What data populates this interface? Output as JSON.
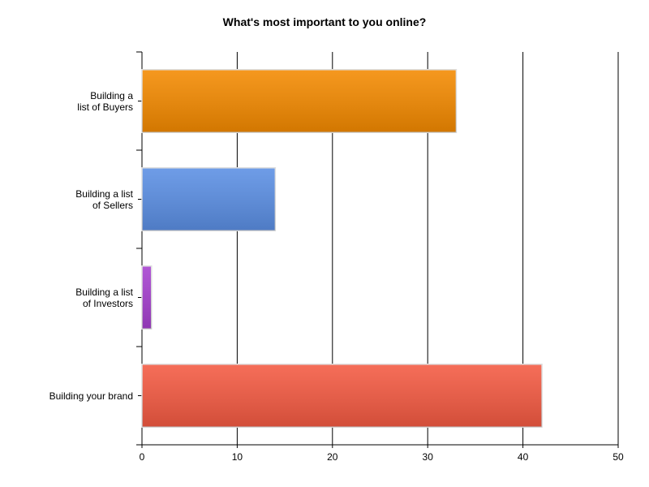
{
  "chart_data": {
    "type": "hbar",
    "title": "What's most important to you online?",
    "categories": [
      "Building a\nlist of Buyers",
      "Building a list\nof Sellers",
      "Building a list\nof Investors",
      "Building your brand"
    ],
    "values": [
      33,
      14,
      1,
      42
    ],
    "colors": [
      "#f48a00",
      "#5b8fe4",
      "#a640d0",
      "#f45a42"
    ],
    "xlim": [
      0,
      50
    ],
    "xticks": [
      0,
      10,
      20,
      30,
      40,
      50
    ],
    "grid": true
  }
}
